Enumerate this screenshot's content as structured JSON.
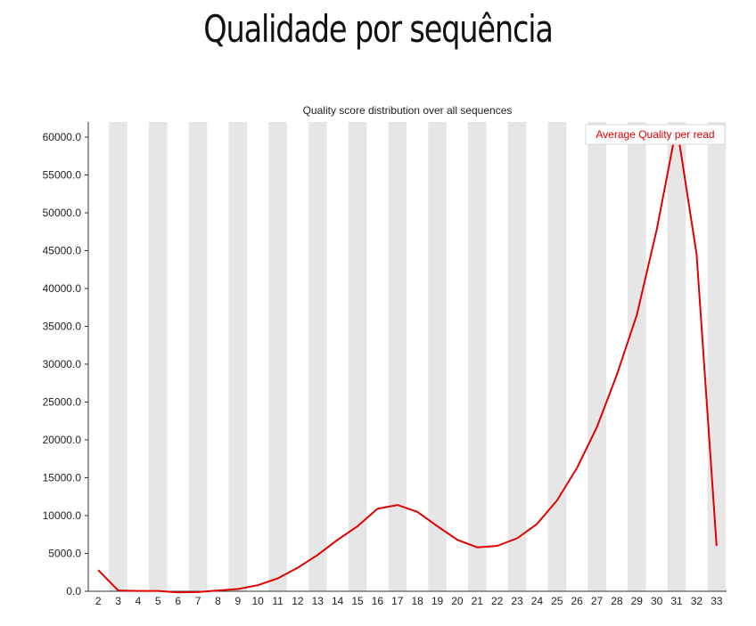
{
  "slide": {
    "title": "Qualidade por sequência"
  },
  "chart_data": {
    "type": "line",
    "title": "Quality score distribution over all sequences",
    "xlabel": "",
    "ylabel": "",
    "x": [
      2,
      3,
      4,
      5,
      6,
      7,
      8,
      9,
      10,
      11,
      12,
      13,
      14,
      15,
      16,
      17,
      18,
      19,
      20,
      21,
      22,
      23,
      24,
      25,
      26,
      27,
      28,
      29,
      30,
      31,
      32,
      33
    ],
    "ylim": [
      0,
      62000
    ],
    "yticks": [
      0,
      5000,
      10000,
      15000,
      20000,
      25000,
      30000,
      35000,
      40000,
      45000,
      50000,
      55000,
      60000
    ],
    "ytick_labels": [
      "0.0",
      "5000.0",
      "10000.0",
      "15000.0",
      "20000.0",
      "25000.0",
      "30000.0",
      "35000.0",
      "40000.0",
      "45000.0",
      "50000.0",
      "55000.0",
      "60000.0"
    ],
    "grid": "alternating vertical bands",
    "legend_position": "top-right",
    "series": [
      {
        "name": "Average Quality per read",
        "color": "#e00000",
        "values": [
          2800,
          100,
          50,
          50,
          -150,
          -100,
          100,
          300,
          800,
          1700,
          3100,
          4800,
          6800,
          8600,
          10900,
          11400,
          10500,
          8600,
          6800,
          5800,
          6000,
          7000,
          8900,
          12000,
          16300,
          21700,
          28600,
          36500,
          47800,
          61500,
          44500,
          6000
        ]
      }
    ],
    "band_color": "#e6e6e6",
    "axis_color": "#333333"
  }
}
